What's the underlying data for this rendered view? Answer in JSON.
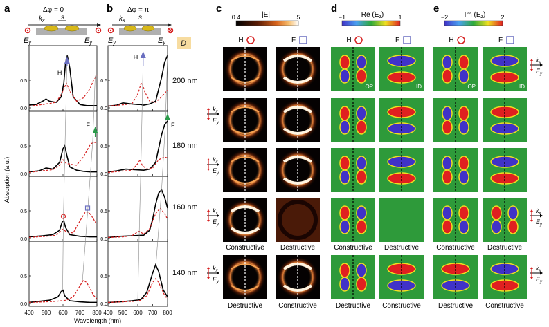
{
  "panels": {
    "a": {
      "letter": "a",
      "phase": "Δφ = 0"
    },
    "b": {
      "letter": "b",
      "phase": "Δφ = π"
    },
    "c": {
      "letter": "c",
      "cbar_title": "|E|",
      "cbar_min": "0.4",
      "cbar_max": "5"
    },
    "d": {
      "letter": "d",
      "cbar_title": "Re (E",
      "cbar_min": "−1",
      "cbar_max": "1"
    },
    "e": {
      "letter": "e",
      "cbar_title": "Im (E",
      "cbar_min": "−2",
      "cbar_max": "2"
    }
  },
  "labels": {
    "H": "H",
    "F": "F",
    "D": "D",
    "kx": "k",
    "kx_sub": "x",
    "Ey": "E",
    "Ey_sub": "y",
    "Ez_sub": "z",
    "s": "s",
    "OP": "OP",
    "ID": "ID",
    "constructive": "Constructive",
    "destructive": "Destructive"
  },
  "diameters": [
    "200 nm",
    "180 nm",
    "160 nm",
    "140 nm"
  ],
  "axes": {
    "ylabel": "Absorption (a.u.)",
    "xlabel": "Wavelength (nm)",
    "xticks": [
      "400",
      "500",
      "600",
      "700",
      "800"
    ],
    "yticks": [
      "0.0",
      "0.5"
    ]
  },
  "bottom_labels": {
    "c": [
      [
        "Constructive",
        "Destructive"
      ],
      [
        "Destructive",
        "Constructive"
      ]
    ],
    "d": [
      [
        "Constructive",
        "Destructive"
      ],
      [
        "Destructive",
        "Constructive"
      ]
    ],
    "e": [
      [
        "Constructive",
        "Destructive"
      ],
      [
        "Destructive",
        "Constructive"
      ]
    ]
  },
  "colors": {
    "black_curve": "#000000",
    "red_curve": "#d62020",
    "H_arrow": "#6a6fc0",
    "F_arrow": "#2a9a4a",
    "D_box": "#f7dca0",
    "H_marker": "#d62020",
    "F_marker": "#6a6fc0"
  },
  "chart_data": [
    {
      "type": "line",
      "panel": "a",
      "xlim": [
        400,
        800
      ],
      "xlabel": "Wavelength (nm)",
      "ylabel": "Absorption (a.u.)",
      "rows": [
        {
          "label": "200 nm",
          "series": [
            {
              "style": "solid",
              "x": [
                400,
                440,
                480,
                500,
                520,
                560,
                590,
                605,
                615,
                625,
                640,
                660,
                700,
                740,
                760,
                780,
                800
              ],
              "y": [
                0.05,
                0.06,
                0.12,
                0.16,
                0.12,
                0.1,
                0.2,
                0.45,
                0.82,
                0.95,
                0.72,
                0.2,
                0.06,
                0.04,
                0.04,
                0.04,
                0.04
              ]
            },
            {
              "style": "dashed",
              "x": [
                400,
                480,
                520,
                560,
                600,
                620,
                640,
                680,
                720,
                760,
                780,
                800
              ],
              "y": [
                0.03,
                0.06,
                0.08,
                0.1,
                0.3,
                0.45,
                0.3,
                0.12,
                0.18,
                0.35,
                0.5,
                0.58
              ]
            }
          ]
        },
        {
          "label": "180 nm",
          "series": [
            {
              "style": "solid",
              "x": [
                400,
                460,
                500,
                540,
                580,
                600,
                610,
                625,
                640,
                680,
                720,
                760,
                800
              ],
              "y": [
                0.03,
                0.05,
                0.1,
                0.08,
                0.2,
                0.45,
                0.5,
                0.3,
                0.12,
                0.06,
                0.04,
                0.03,
                0.03
              ]
            },
            {
              "style": "dashed",
              "x": [
                400,
                480,
                540,
                580,
                600,
                620,
                680,
                720,
                760,
                780,
                800
              ],
              "y": [
                0.02,
                0.05,
                0.07,
                0.15,
                0.25,
                0.18,
                0.15,
                0.3,
                0.52,
                0.57,
                0.55
              ]
            }
          ]
        },
        {
          "label": "160 nm",
          "series": [
            {
              "style": "solid",
              "x": [
                400,
                480,
                540,
                580,
                595,
                605,
                615,
                640,
                700,
                760,
                800
              ],
              "y": [
                0.03,
                0.05,
                0.07,
                0.15,
                0.3,
                0.32,
                0.2,
                0.07,
                0.04,
                0.03,
                0.03
              ]
            },
            {
              "style": "dashed",
              "x": [
                400,
                500,
                560,
                600,
                620,
                660,
                700,
                730,
                750,
                770,
                800
              ],
              "y": [
                0.02,
                0.04,
                0.06,
                0.17,
                0.12,
                0.1,
                0.32,
                0.47,
                0.48,
                0.4,
                0.25
              ]
            }
          ]
        },
        {
          "label": "140 nm",
          "series": [
            {
              "style": "solid",
              "x": [
                400,
                460,
                520,
                570,
                590,
                600,
                610,
                640,
                700,
                760,
                800
              ],
              "y": [
                0.02,
                0.04,
                0.06,
                0.12,
                0.22,
                0.24,
                0.14,
                0.05,
                0.03,
                0.02,
                0.02
              ]
            },
            {
              "style": "dashed",
              "x": [
                400,
                500,
                560,
                620,
                660,
                700,
                720,
                740,
                780,
                800
              ],
              "y": [
                0.02,
                0.03,
                0.04,
                0.06,
                0.12,
                0.32,
                0.42,
                0.38,
                0.15,
                0.08
              ]
            }
          ]
        }
      ]
    },
    {
      "type": "line",
      "panel": "b",
      "xlim": [
        400,
        800
      ],
      "xlabel": "Wavelength (nm)",
      "rows": [
        {
          "label": "200 nm",
          "series": [
            {
              "style": "solid",
              "x": [
                400,
                460,
                500,
                560,
                600,
                620,
                640,
                680,
                720,
                760,
                780,
                800
              ],
              "y": [
                0.03,
                0.05,
                0.09,
                0.07,
                0.06,
                0.06,
                0.05,
                0.07,
                0.12,
                0.55,
                0.82,
                0.95
              ]
            },
            {
              "style": "dashed",
              "x": [
                400,
                480,
                560,
                600,
                620,
                630,
                645,
                680,
                720,
                760,
                800
              ],
              "y": [
                0.03,
                0.05,
                0.07,
                0.25,
                0.42,
                0.45,
                0.3,
                0.12,
                0.1,
                0.2,
                0.32
              ]
            }
          ]
        },
        {
          "label": "180 nm",
          "series": [
            {
              "style": "solid",
              "x": [
                400,
                460,
                520,
                580,
                640,
                680,
                720,
                740,
                760,
                780,
                800
              ],
              "y": [
                0.03,
                0.05,
                0.08,
                0.07,
                0.06,
                0.08,
                0.2,
                0.45,
                0.7,
                0.88,
                0.95
              ]
            },
            {
              "style": "dashed",
              "x": [
                400,
                480,
                560,
                600,
                615,
                630,
                660,
                700,
                740,
                780,
                800
              ],
              "y": [
                0.02,
                0.04,
                0.06,
                0.18,
                0.25,
                0.15,
                0.08,
                0.1,
                0.25,
                0.3,
                0.28
              ]
            }
          ]
        },
        {
          "label": "160 nm",
          "series": [
            {
              "style": "solid",
              "x": [
                400,
                480,
                560,
                640,
                680,
                700,
                720,
                740,
                760,
                780,
                800
              ],
              "y": [
                0.02,
                0.04,
                0.05,
                0.06,
                0.15,
                0.35,
                0.62,
                0.82,
                0.88,
                0.75,
                0.55
              ]
            },
            {
              "style": "dashed",
              "x": [
                400,
                500,
                560,
                600,
                610,
                640,
                680,
                720,
                750,
                780,
                800
              ],
              "y": [
                0.02,
                0.03,
                0.05,
                0.12,
                0.13,
                0.08,
                0.18,
                0.45,
                0.55,
                0.45,
                0.35
              ]
            }
          ]
        },
        {
          "label": "140 nm",
          "series": [
            {
              "style": "solid",
              "x": [
                400,
                480,
                560,
                620,
                660,
                700,
                720,
                740,
                770,
                800
              ],
              "y": [
                0.02,
                0.03,
                0.05,
                0.07,
                0.2,
                0.55,
                0.7,
                0.58,
                0.25,
                0.12
              ]
            },
            {
              "style": "dashed",
              "x": [
                400,
                500,
                580,
                620,
                660,
                700,
                720,
                740,
                780,
                800
              ],
              "y": [
                0.02,
                0.03,
                0.04,
                0.06,
                0.14,
                0.38,
                0.45,
                0.38,
                0.15,
                0.08
              ]
            }
          ]
        }
      ]
    }
  ]
}
